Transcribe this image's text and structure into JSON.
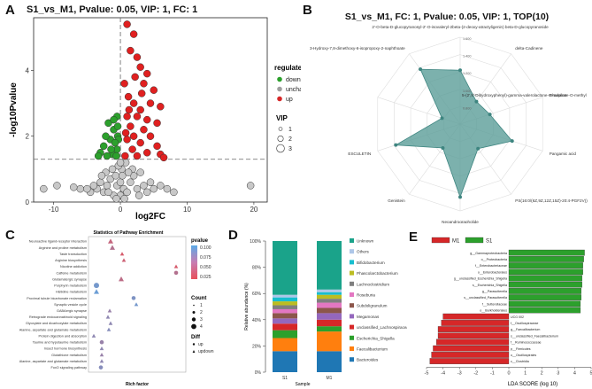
{
  "panels": {
    "A": {
      "letter": "A",
      "chart_data": {
        "type": "scatter",
        "title": "S1_vs_M1, Pvalue: 0.05, VIP: 1, FC: 1",
        "xlabel": "log2FC",
        "ylabel": "-log10Pvalue",
        "xlim": [
          -13,
          22
        ],
        "ylim": [
          0,
          5.6
        ],
        "xticks": [
          -10,
          0,
          10,
          20
        ],
        "yticks": [
          0,
          2,
          4
        ],
        "threshold_y": 1.3,
        "threshold_x": 0,
        "legend_title": "regulated",
        "legend": [
          {
            "label": "down",
            "color": "#2ca02c"
          },
          {
            "label": "unchanged",
            "color": "#9e9e9e"
          },
          {
            "label": "up",
            "color": "#d62728"
          }
        ],
        "vip_title": "VIP",
        "vip_sizes": [
          "1",
          "2",
          "3"
        ],
        "points": {
          "down": [
            [
              -0.5,
              2.6
            ],
            [
              -1,
              2.2
            ],
            [
              -1.5,
              1.9
            ],
            [
              -2.5,
              1.7
            ],
            [
              -3,
              1.5
            ],
            [
              -0.5,
              1.6
            ],
            [
              -1.2,
              1.45
            ],
            [
              -2,
              1.4
            ],
            [
              -0.4,
              2.0
            ],
            [
              -1.8,
              2.4
            ],
            [
              -0.3,
              1.9
            ],
            [
              -2.2,
              2.0
            ],
            [
              -0.8,
              1.8
            ],
            [
              -1.4,
              1.6
            ],
            [
              -0.6,
              1.4
            ],
            [
              -3.3,
              1.4
            ],
            [
              -1.0,
              2.5
            ],
            [
              -0.4,
              2.3
            ]
          ],
          "up": [
            [
              1,
              5.4
            ],
            [
              2,
              5.1
            ],
            [
              1.5,
              4.6
            ],
            [
              2.5,
              4.4
            ],
            [
              3,
              4.1
            ],
            [
              4,
              3.9
            ],
            [
              3.5,
              3.6
            ],
            [
              5,
              3.4
            ],
            [
              1.2,
              3.2
            ],
            [
              2,
              3.0
            ],
            [
              4.5,
              3.0
            ],
            [
              6,
              2.9
            ],
            [
              3,
              2.8
            ],
            [
              1,
              2.6
            ],
            [
              2.5,
              2.6
            ],
            [
              4,
              2.5
            ],
            [
              5.5,
              2.4
            ],
            [
              1.5,
              2.3
            ],
            [
              3.5,
              2.2
            ],
            [
              2,
              2.0
            ],
            [
              4.5,
              2.0
            ],
            [
              1,
              1.9
            ],
            [
              3,
              1.8
            ],
            [
              5.5,
              1.7
            ],
            [
              1.8,
              1.6
            ],
            [
              4,
              1.5
            ],
            [
              0.7,
              1.4
            ],
            [
              2.5,
              1.4
            ],
            [
              6,
              1.45
            ],
            [
              6.5,
              1.35
            ],
            [
              0.8,
              2.1
            ],
            [
              1.3,
              2.8
            ],
            [
              3.2,
              3.3
            ],
            [
              0.6,
              3.6
            ],
            [
              2.2,
              3.8
            ]
          ],
          "unchanged": [
            [
              0,
              0.2
            ],
            [
              0.5,
              0.4
            ],
            [
              -0.5,
              0.5
            ],
            [
              1,
              0.3
            ],
            [
              -1,
              0.2
            ],
            [
              1.5,
              0.6
            ],
            [
              -1.5,
              0.7
            ],
            [
              2,
              0.8
            ],
            [
              -2,
              0.5
            ],
            [
              2.5,
              0.4
            ],
            [
              -2.5,
              0.3
            ],
            [
              3,
              0.9
            ],
            [
              -3,
              0.6
            ],
            [
              0.2,
              1.0
            ],
            [
              -0.3,
              1.1
            ],
            [
              0.8,
              1.2
            ],
            [
              -1.2,
              1.0
            ],
            [
              1.8,
              1.0
            ],
            [
              -2.2,
              0.9
            ],
            [
              3.5,
              0.5
            ],
            [
              -3.5,
              0.4
            ],
            [
              4,
              0.3
            ],
            [
              -4,
              0.5
            ],
            [
              4.5,
              0.6
            ],
            [
              -4.5,
              0.3
            ],
            [
              5,
              0.4
            ],
            [
              -5,
              0.4
            ],
            [
              6,
              0.5
            ],
            [
              -6,
              0.4
            ],
            [
              7,
              0.4
            ],
            [
              -7,
              0.45
            ],
            [
              8,
              0.3
            ],
            [
              -9.5,
              0.5
            ],
            [
              -11.5,
              0.4
            ],
            [
              19.5,
              0.5
            ],
            [
              0,
              0.6
            ],
            [
              0.3,
              0.8
            ],
            [
              -0.7,
              0.8
            ],
            [
              1.2,
              0.9
            ],
            [
              -1.8,
              0.3
            ],
            [
              2.8,
              0.2
            ],
            [
              -2.8,
              0.8
            ],
            [
              0,
              1.2
            ],
            [
              0.6,
              0.1
            ],
            [
              -0.6,
              0.1
            ]
          ]
        }
      }
    },
    "B": {
      "letter": "B",
      "chart_data": {
        "type": "radar",
        "title": "S1_vs_M1, FC: 1, Pvalue: 0.05, VIP: 1, TOP(10)",
        "ring_labels": [
          "1.600",
          "1.400",
          "1.200",
          "1.000",
          "0.800"
        ],
        "labels": [
          "2'-O-beta-D-glucopyranosyl-2'-O-isovaleryl-2beta-(2-deoxy-atractyligenin) beta-D-glucopyranoside",
          "delta-Cadinene",
          "Rhoeaine",
          "Pangamic acid",
          "PS(16:0/(6Z,9Z,12Z,15Z)-20:4-PGF2V))",
          "Neoandrographolide",
          "Genistein",
          "ESCULETIN",
          "5-(2',5'-Dihydroxyphenyl)-gamma-valerolactone-O-sulphate-O-methyl",
          "3-Hydroxy-7,8-dimethoxy-6-isopropoxy-2-naphthoate"
        ],
        "values": [
          0.62,
          0.32,
          0.36,
          0.63,
          0.35,
          0.84,
          0.34,
          0.78,
          0.22,
          0.78
        ]
      }
    },
    "C": {
      "letter": "C",
      "chart_data": {
        "type": "scatter",
        "title": "Statistics of Pathway Enrichment",
        "xlabel": "Rich factor",
        "pathways": [
          {
            "name": "Neuroactive ligand-receptor interaction",
            "x": 0.21,
            "p": 0.04,
            "count": 2,
            "diff": "updown"
          },
          {
            "name": "Arginine and proline metabolism",
            "x": 0.23,
            "p": 0.05,
            "count": 2,
            "diff": "updown"
          },
          {
            "name": "Taste transduction",
            "x": 0.34,
            "p": 0.03,
            "count": 1,
            "diff": "updown"
          },
          {
            "name": "Arginine biosynthesis",
            "x": 0.36,
            "p": 0.035,
            "count": 1,
            "diff": "updown"
          },
          {
            "name": "Nicotine addiction",
            "x": 0.95,
            "p": 0.03,
            "count": 1,
            "diff": "updown"
          },
          {
            "name": "Caffeine metabolism",
            "x": 0.95,
            "p": 0.05,
            "count": 1,
            "diff": "up"
          },
          {
            "name": "Glutamatergic synapse",
            "x": 0.33,
            "p": 0.045,
            "count": 2,
            "diff": "updown"
          },
          {
            "name": "Porphyrin metabolism",
            "x": 0.05,
            "p": 0.085,
            "count": 2,
            "diff": "up"
          },
          {
            "name": "Histidine metabolism",
            "x": 0.05,
            "p": 0.09,
            "count": 2,
            "diff": "updown"
          },
          {
            "name": "Proximal tubule bicarbonate reclamation",
            "x": 0.47,
            "p": 0.08,
            "count": 1,
            "diff": "up"
          },
          {
            "name": "Synaptic vesicle cycle",
            "x": 0.5,
            "p": 0.085,
            "count": 1,
            "diff": "updown"
          },
          {
            "name": "GABAergic synapse",
            "x": 0.2,
            "p": 0.065,
            "count": 1,
            "diff": "updown"
          },
          {
            "name": "Retrograde endocannabinoid signaling",
            "x": 0.18,
            "p": 0.07,
            "count": 1,
            "diff": "updown"
          },
          {
            "name": "Glyoxylate and dicarboxylate metabolism",
            "x": 0.21,
            "p": 0.07,
            "count": 1,
            "diff": "updown"
          },
          {
            "name": "Alanine, aspartate and glutamate metabolism",
            "x": 0.19,
            "p": 0.075,
            "count": 1,
            "diff": "updown"
          },
          {
            "name": "Protein digestion and absorption",
            "x": 0.02,
            "p": 0.07,
            "count": 1,
            "diff": "updown"
          },
          {
            "name": "Taurine and hypotaurine metabolism",
            "x": 0.11,
            "p": 0.065,
            "count": 1,
            "diff": "up"
          },
          {
            "name": "Insect hormone biosynthesis",
            "x": 0.11,
            "p": 0.07,
            "count": 1,
            "diff": "updown"
          },
          {
            "name": "Glutathione metabolism",
            "x": 0.11,
            "p": 0.065,
            "count": 1,
            "diff": "updown"
          },
          {
            "name": "Alanine, aspartate and glutamate metabolism",
            "x": 0.11,
            "p": 0.07,
            "count": 1,
            "diff": "updown"
          },
          {
            "name": "FoxO signaling pathway",
            "x": 0.1,
            "p": 0.075,
            "count": 1,
            "diff": "up"
          }
        ],
        "legend_pvalue_title": "pvalue",
        "pvalue_ticks": [
          "0.100",
          "0.075",
          "0.050",
          "0.025"
        ],
        "legend_count_title": "Count",
        "count_sizes": [
          "1",
          "2",
          "3",
          "4"
        ],
        "legend_diff_title": "Diff",
        "diff_items": [
          "up",
          "updown"
        ]
      }
    },
    "D": {
      "letter": "D",
      "chart_data": {
        "type": "bar",
        "stacked": true,
        "xlabel": "Sample",
        "ylabel": "Relative abundance (%)",
        "categories": [
          "S1",
          "M1"
        ],
        "yticks": [
          "0%",
          "20%",
          "40%",
          "60%",
          "80%",
          "100%"
        ],
        "series": [
          {
            "name": "Bacteroides",
            "color": "#1f77b4",
            "values": [
              16,
              16
            ]
          },
          {
            "name": "Faecalibacterium",
            "color": "#ff7f0e",
            "values": [
              10,
              15
            ]
          },
          {
            "name": "Escherichia_Shigella",
            "color": "#2ca02c",
            "values": [
              6,
              4
            ]
          },
          {
            "name": "unclassified_Lachnospiraceae",
            "color": "#d62728",
            "values": [
              5,
              5
            ]
          },
          {
            "name": "Megamonas",
            "color": "#9467bd",
            "values": [
              4,
              5
            ]
          },
          {
            "name": "Subdoligranulum",
            "color": "#8c564b",
            "values": [
              4,
              4
            ]
          },
          {
            "name": "Roseburia",
            "color": "#e377c2",
            "values": [
              3,
              4
            ]
          },
          {
            "name": "Lachnoclostridium",
            "color": "#7f7f7f",
            "values": [
              3,
              3
            ]
          },
          {
            "name": "Phascolarctobacterium",
            "color": "#bcbd22",
            "values": [
              3,
              3
            ]
          },
          {
            "name": "Bifidobacterium",
            "color": "#17becf",
            "values": [
              3,
              2
            ]
          },
          {
            "name": "Others",
            "color": "#aec7e8",
            "values": [
              2,
              2
            ]
          },
          {
            "name": "Unknown",
            "color": "#1aa38a",
            "values": [
              41,
              37
            ]
          }
        ]
      }
    },
    "E": {
      "letter": "E",
      "chart_data": {
        "type": "bar",
        "orientation": "horizontal",
        "xlabel": "LDA SCORE (log 10)",
        "xlim": [
          -5,
          5
        ],
        "xticks": [
          -5,
          -4,
          -3,
          -2,
          -1,
          0,
          1,
          2,
          3,
          4,
          5
        ],
        "legend": [
          {
            "label": "M1",
            "color": "#d62728"
          },
          {
            "label": "S1",
            "color": "#2ca02c"
          }
        ],
        "bars": [
          {
            "label": "g__Gammaproteobacteria",
            "group": "S1",
            "value": 4.6
          },
          {
            "label": "o__Proteobacteria",
            "group": "S1",
            "value": 4.55
          },
          {
            "label": "f__Enterobacteriaceae",
            "group": "S1",
            "value": 4.5
          },
          {
            "label": "o__Enterobacterales",
            "group": "S1",
            "value": 4.5
          },
          {
            "label": "g__unclassified_Escherichia_Shigella",
            "group": "S1",
            "value": 4.45
          },
          {
            "label": "s__Escherichia_Shigella",
            "group": "S1",
            "value": 4.45
          },
          {
            "label": "g__Parasutterella",
            "group": "S1",
            "value": 4.4
          },
          {
            "label": "s__unclassified_Parasutterella",
            "group": "S1",
            "value": 4.4
          },
          {
            "label": "f__Sutterellaceae",
            "group": "S1",
            "value": 4.35
          },
          {
            "label": "o__Burkholderiales",
            "group": "S1",
            "value": 4.35
          },
          {
            "label": "UCG 002",
            "group": "M1",
            "value": -4.0
          },
          {
            "label": "f__Oscillospiraceae",
            "group": "M1",
            "value": -4.1
          },
          {
            "label": "g__Faecalibacterium",
            "group": "M1",
            "value": -4.3
          },
          {
            "label": "s__unclassified_Faecalibacterium",
            "group": "M1",
            "value": -4.3
          },
          {
            "label": "f__Ruminococcaceae",
            "group": "M1",
            "value": -4.4
          },
          {
            "label": "p__Firmicutes",
            "group": "M1",
            "value": -4.6
          },
          {
            "label": "o__Oscillospirales",
            "group": "M1",
            "value": -4.7
          },
          {
            "label": "c__Clostridia",
            "group": "M1",
            "value": -4.8
          }
        ]
      }
    }
  }
}
